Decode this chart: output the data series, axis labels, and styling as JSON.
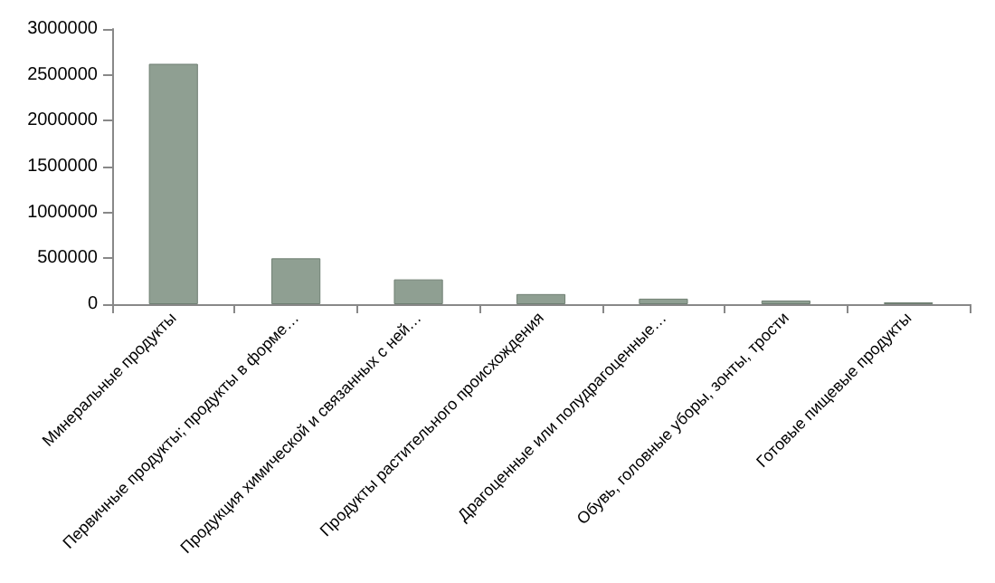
{
  "chart_data": {
    "type": "bar",
    "categories": [
      "Минеральные продукты",
      "Первичные продукты; продукты в форме…",
      "Продукция химической и связанных с ней…",
      "Продукты растительного происхождения",
      "Драгоценные или полудрагоценные…",
      "Обувь, головные уборы, зонты, трости",
      "Готовые пищевые продукты"
    ],
    "values": [
      2620000,
      500000,
      270000,
      110000,
      60000,
      40000,
      20000
    ],
    "color": "#8f9f92",
    "ylim": [
      0,
      3000000
    ],
    "yticks": [
      0,
      500000,
      1000000,
      1500000,
      2000000,
      2500000,
      3000000
    ],
    "grid": false
  }
}
